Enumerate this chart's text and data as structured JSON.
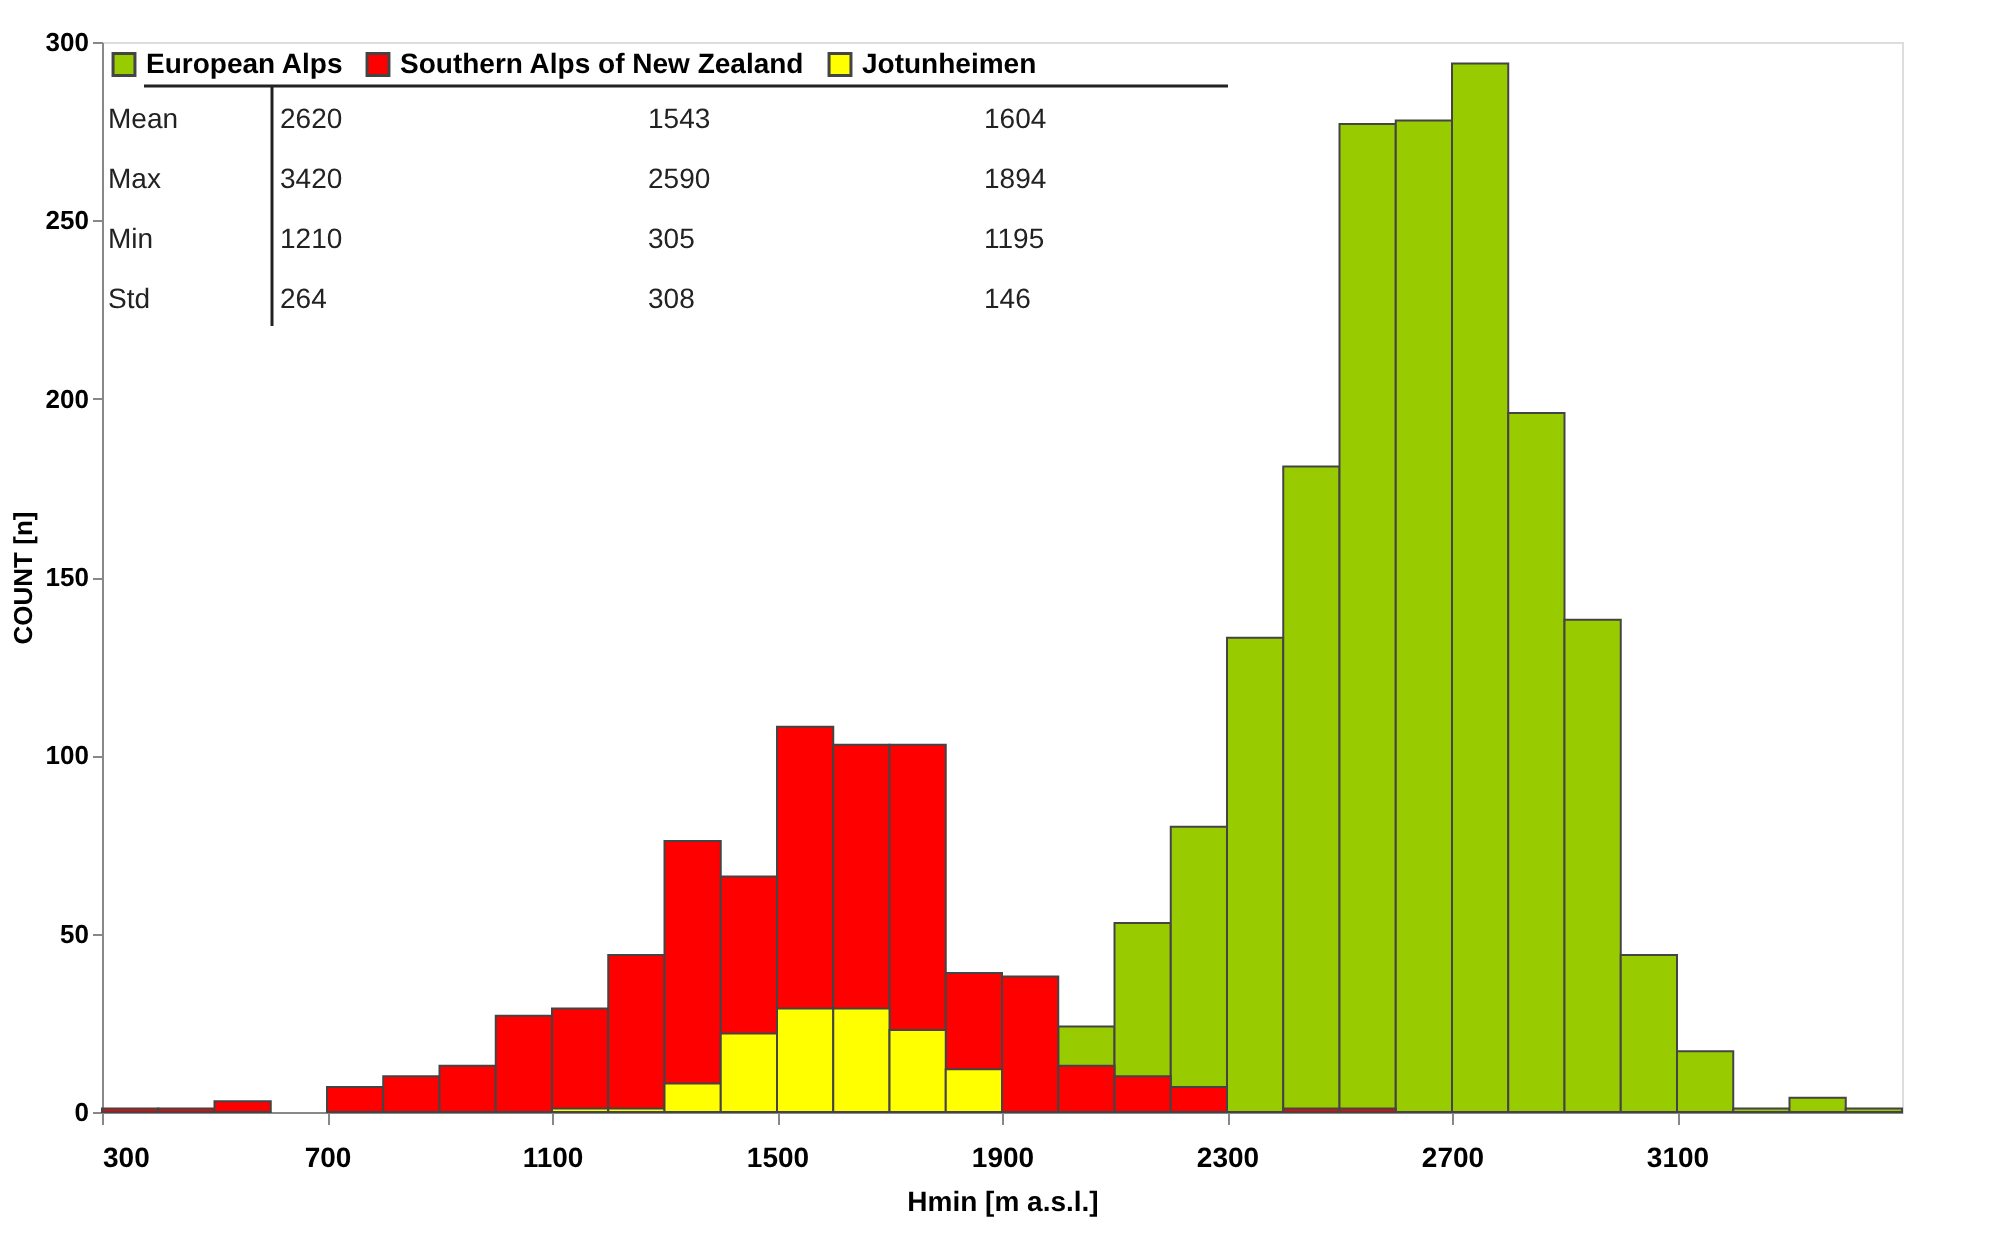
{
  "chart_data": {
    "type": "histogram",
    "xlabel": "Hmin [m a.s.l.]",
    "ylabel": "COUNT [n]",
    "bins": [
      300,
      400,
      500,
      600,
      700,
      800,
      900,
      1000,
      1100,
      1200,
      1300,
      1400,
      1500,
      1600,
      1700,
      1800,
      1900,
      2000,
      2100,
      2200,
      2300,
      2400,
      2500,
      2600,
      2700,
      2800,
      2900,
      3000,
      3100,
      3200,
      3300,
      3400,
      3500
    ],
    "series": [
      {
        "name": "European Alps",
        "color": "#99cc00",
        "values": [
          0,
          0,
          0,
          0,
          0,
          0,
          0,
          0,
          0,
          null,
          null,
          null,
          null,
          null,
          null,
          null,
          null,
          24,
          53,
          80,
          133,
          181,
          277,
          278,
          294,
          196,
          138,
          44,
          17,
          1,
          4,
          1
        ]
      },
      {
        "name": "Southern Alps of New Zealand",
        "color": "#ff0000",
        "values": [
          1,
          1,
          3,
          0,
          7,
          10,
          13,
          27,
          29,
          44,
          76,
          66,
          108,
          103,
          103,
          39,
          38,
          13,
          10,
          7,
          0,
          1,
          1,
          0,
          0,
          0,
          0,
          0,
          0,
          0,
          0,
          0
        ]
      },
      {
        "name": "Jotunheimen",
        "color": "#ffff00",
        "values": [
          0,
          0,
          0,
          0,
          0,
          0,
          0,
          0,
          1,
          1,
          8,
          22,
          29,
          29,
          23,
          12,
          0,
          0,
          0,
          0,
          0,
          0,
          0,
          0,
          0,
          0,
          0,
          0,
          0,
          0,
          0,
          0
        ]
      }
    ],
    "xlim": [
      300,
      3500
    ],
    "ylim": [
      0,
      300
    ],
    "xticks": [
      300,
      700,
      1100,
      1500,
      1900,
      2300,
      2700,
      3100
    ],
    "yticks": [
      0,
      50,
      100,
      150,
      200,
      250,
      300
    ],
    "legend": "top left",
    "annotations": [
      "Mean",
      "2620",
      "1543",
      "1604",
      "Max",
      "3420",
      "2590",
      "1894",
      "Min",
      "1210",
      "305",
      "1195",
      "Std",
      "264",
      "308",
      "146"
    ]
  }
}
